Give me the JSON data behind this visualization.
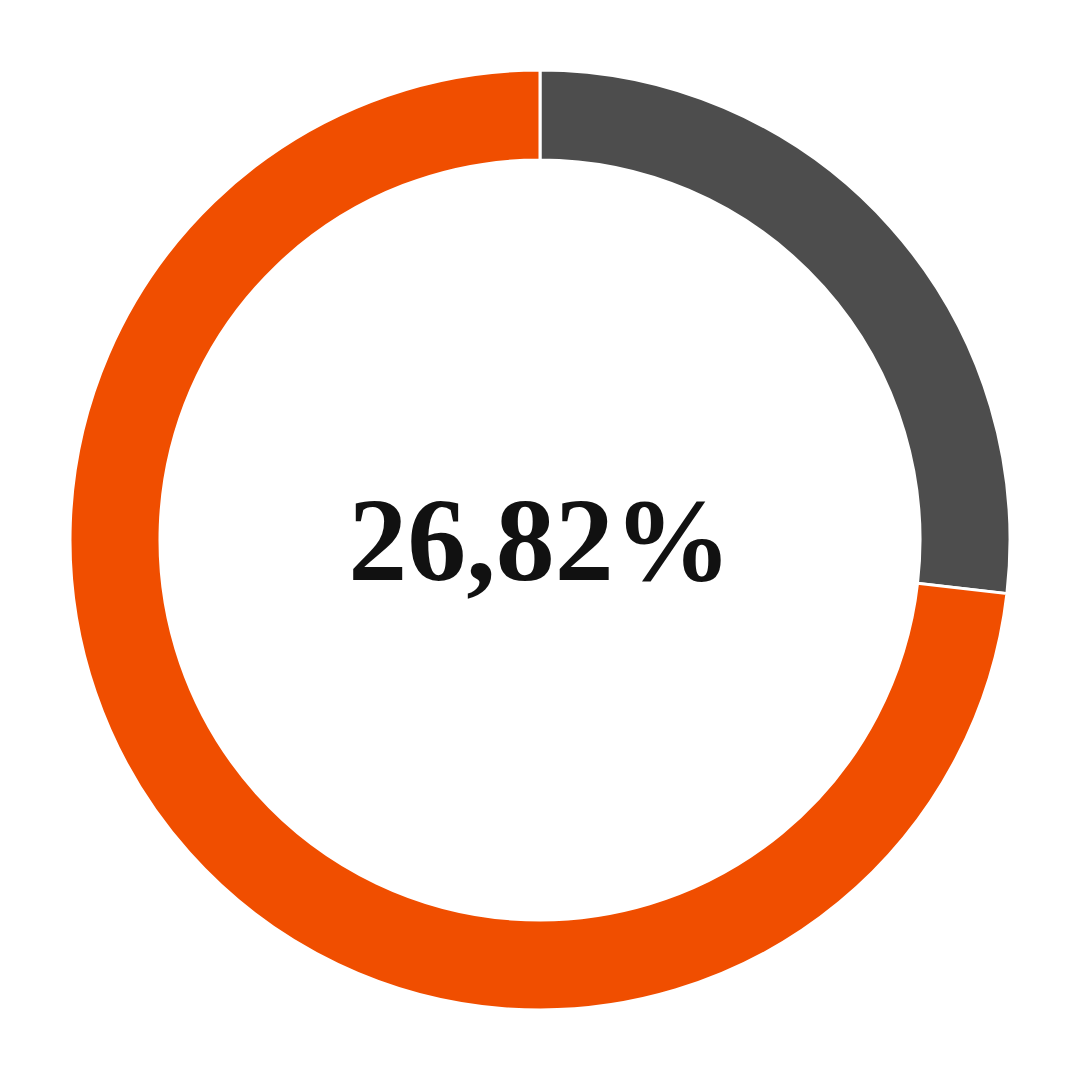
{
  "chart_data": {
    "type": "donut",
    "categories": [
      null,
      null
    ],
    "values": [
      26.82,
      73.18
    ],
    "colors": [
      "#4d4d4d",
      "#f04e00"
    ],
    "value_labels": [
      "26,82%",
      null
    ]
  }
}
